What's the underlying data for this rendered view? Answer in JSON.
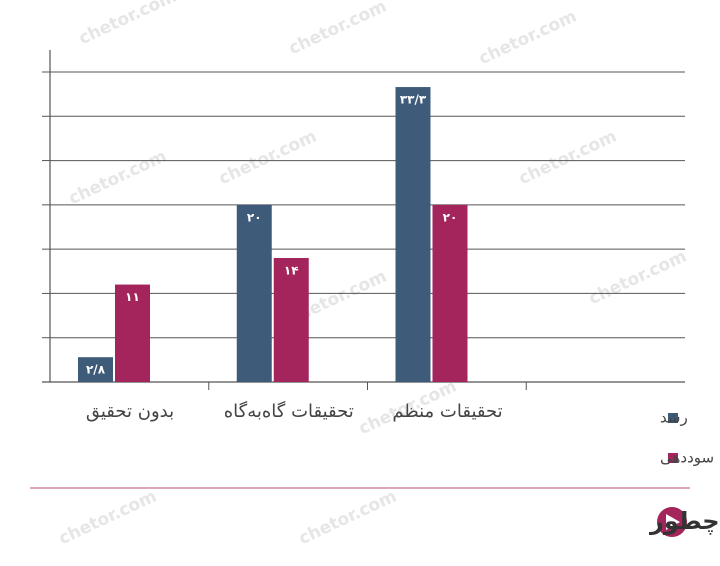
{
  "chart_data": {
    "type": "bar",
    "categories": [
      "بدون تحقیق",
      "تحقیقات گاه‌به‌گاه",
      "تحقیقات منظم",
      null
    ],
    "series": [
      {
        "name": "رشد",
        "color": "#3e5c7a",
        "values": [
          2.8,
          20,
          33.3,
          null
        ],
        "value_labels": [
          "۲/۸",
          "۲۰",
          "۳۳/۳",
          null
        ]
      },
      {
        "name": "سوددهی",
        "color": "#a3255c",
        "values": [
          11,
          14,
          20,
          null
        ],
        "value_labels": [
          "۱۱",
          "۱۴",
          "۲۰",
          null
        ]
      }
    ],
    "ylim": [
      0,
      35
    ],
    "yticks": [
      0,
      5,
      10,
      15,
      20,
      25,
      30,
      35
    ],
    "grid": true,
    "legend": "bottom-right"
  },
  "brand": {
    "name": "چطور",
    "watermark": "chetor.com"
  }
}
